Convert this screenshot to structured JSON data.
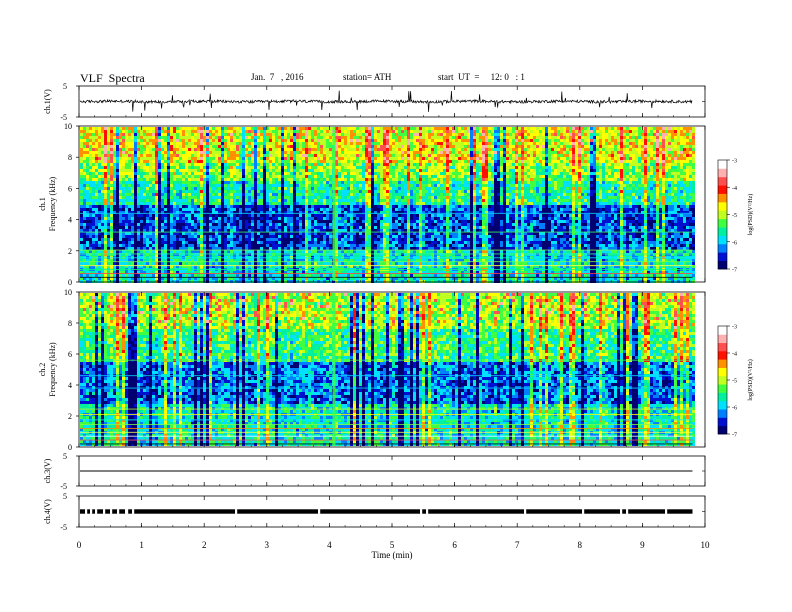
{
  "header": {
    "title": "VLF  Spectra",
    "date": "Jan.  7   , 2016",
    "station": "station= ATH",
    "start": "start  UT  =     12: 0   : 1"
  },
  "chart_data": [
    {
      "type": "line",
      "id": "ch1-waveform",
      "ylabel": "ch.1(V)",
      "ylim": [
        -5,
        5
      ],
      "yticks": [
        "5",
        "-5"
      ],
      "xlim": [
        0,
        10
      ],
      "data_extent_min": 9.8,
      "baseline": 0,
      "color": "#000000"
    },
    {
      "type": "heatmap",
      "id": "ch1-spectrogram",
      "ylabel_lines": [
        "ch.1",
        "Frequency  (kHz)"
      ],
      "ylim": [
        0,
        10
      ],
      "yticks": [
        "0",
        "2",
        "4",
        "6",
        "8",
        "10"
      ],
      "xlim": [
        0,
        10
      ],
      "data_extent_min": 9.8,
      "colorbar": {
        "label": "log(PSD)(V²/Hz)",
        "range": [
          -7,
          -3
        ],
        "ticks": [
          "-3",
          "-4",
          "-5",
          "-6",
          "-7"
        ],
        "colors": [
          "#000070",
          "#0010d0",
          "#0080ff",
          "#00e0ff",
          "#00f0a0",
          "#40ff40",
          "#c0ff20",
          "#ffff00",
          "#ff9000",
          "#ff1000",
          "#ff5050",
          "#ffb0b0",
          "#ffffff"
        ]
      }
    },
    {
      "type": "heatmap",
      "id": "ch2-spectrogram",
      "ylabel_lines": [
        "ch.2",
        "Frequency  (kHz)"
      ],
      "ylim": [
        0,
        10
      ],
      "yticks": [
        "0",
        "2",
        "4",
        "6",
        "8",
        "10"
      ],
      "xlim": [
        0,
        10
      ],
      "data_extent_min": 9.8,
      "colorbar": {
        "label": "log(PSD)(V²/Hz)",
        "range": [
          -7,
          -3
        ],
        "ticks": [
          "-3",
          "-4",
          "-5",
          "-6",
          "-7"
        ],
        "colors": [
          "#000070",
          "#0010d0",
          "#0080ff",
          "#00e0ff",
          "#00f0a0",
          "#40ff40",
          "#c0ff20",
          "#ffff00",
          "#ff9000",
          "#ff1000",
          "#ff5050",
          "#ffb0b0",
          "#ffffff"
        ]
      }
    },
    {
      "type": "line",
      "id": "ch3-waveform",
      "ylabel": "ch.3(V)",
      "ylim": [
        -5,
        5
      ],
      "yticks": [
        "5",
        "-5"
      ],
      "xlim": [
        0,
        10
      ],
      "data_extent_min": 9.8,
      "baseline": 0,
      "color": "#000000"
    },
    {
      "type": "line",
      "id": "ch4-waveform",
      "ylabel": "ch.4(V)",
      "ylim": [
        -5,
        5
      ],
      "yticks": [
        "5",
        "-5"
      ],
      "xlim": [
        0,
        10
      ],
      "data_extent_min": 9.8,
      "baseline": 0,
      "color": "#000000"
    }
  ],
  "xaxis": {
    "label": "Time  (min)",
    "ticks": [
      "0",
      "1",
      "2",
      "3",
      "4",
      "5",
      "6",
      "7",
      "8",
      "9",
      "10"
    ]
  }
}
